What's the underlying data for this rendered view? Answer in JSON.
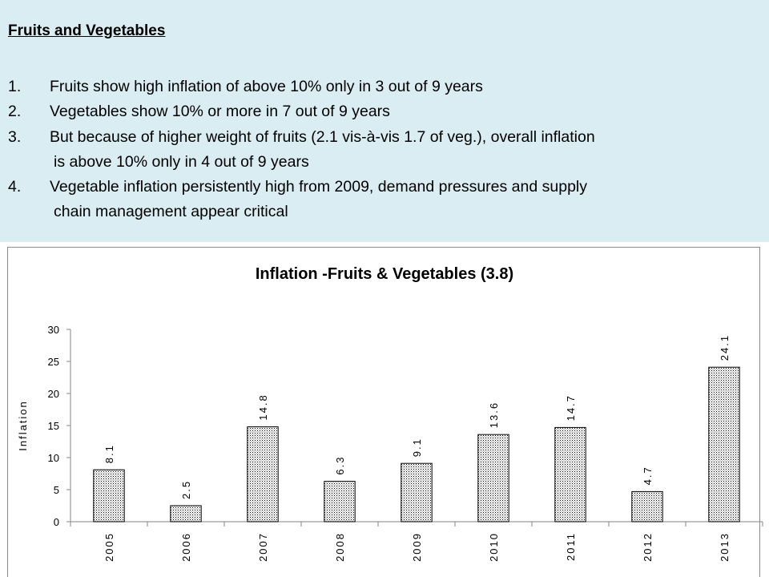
{
  "text": {
    "heading": "Fruits and Vegetables",
    "points": [
      {
        "num": "1.",
        "lines": [
          "Fruits show high inflation of above 10% only in 3 out of 9 years"
        ]
      },
      {
        "num": "2.",
        "lines": [
          "Vegetables show 10% or more in 7 out of 9 years"
        ]
      },
      {
        "num": "3.",
        "lines": [
          "But because of higher weight of fruits (2.1 vis-à-vis 1.7 of veg.), overall inflation",
          "is above 10% only in 4 out of 9 years"
        ]
      },
      {
        "num": "4.",
        "lines": [
          "Vegetable inflation persistently high from 2009, demand pressures and supply",
          "chain management appear critical"
        ]
      }
    ]
  },
  "chart_data": {
    "type": "bar",
    "title": "Inflation -Fruits & Vegetables (3.8)",
    "xlabel": "",
    "ylabel": "Inflation",
    "categories": [
      "2005",
      "2006",
      "2007",
      "2008",
      "2009",
      "2010",
      "2011",
      "2012",
      "2013"
    ],
    "values": [
      8.1,
      2.5,
      14.8,
      6.3,
      9.1,
      13.6,
      14.7,
      4.7,
      24.1
    ],
    "data_labels": [
      "8.1",
      "2.5",
      "14.8",
      "6.3",
      "9.1",
      "13.6",
      "14.7",
      "4.7",
      "24.1"
    ],
    "ylim": [
      0,
      30
    ],
    "yticks": [
      0,
      5,
      10,
      15,
      20,
      25,
      30
    ],
    "grid": false,
    "legend": "none",
    "bar_fill": "dotted pattern",
    "colors": {
      "bar_stroke": "#000000",
      "axis": "#868686",
      "panel_background": "#daedf3"
    }
  }
}
